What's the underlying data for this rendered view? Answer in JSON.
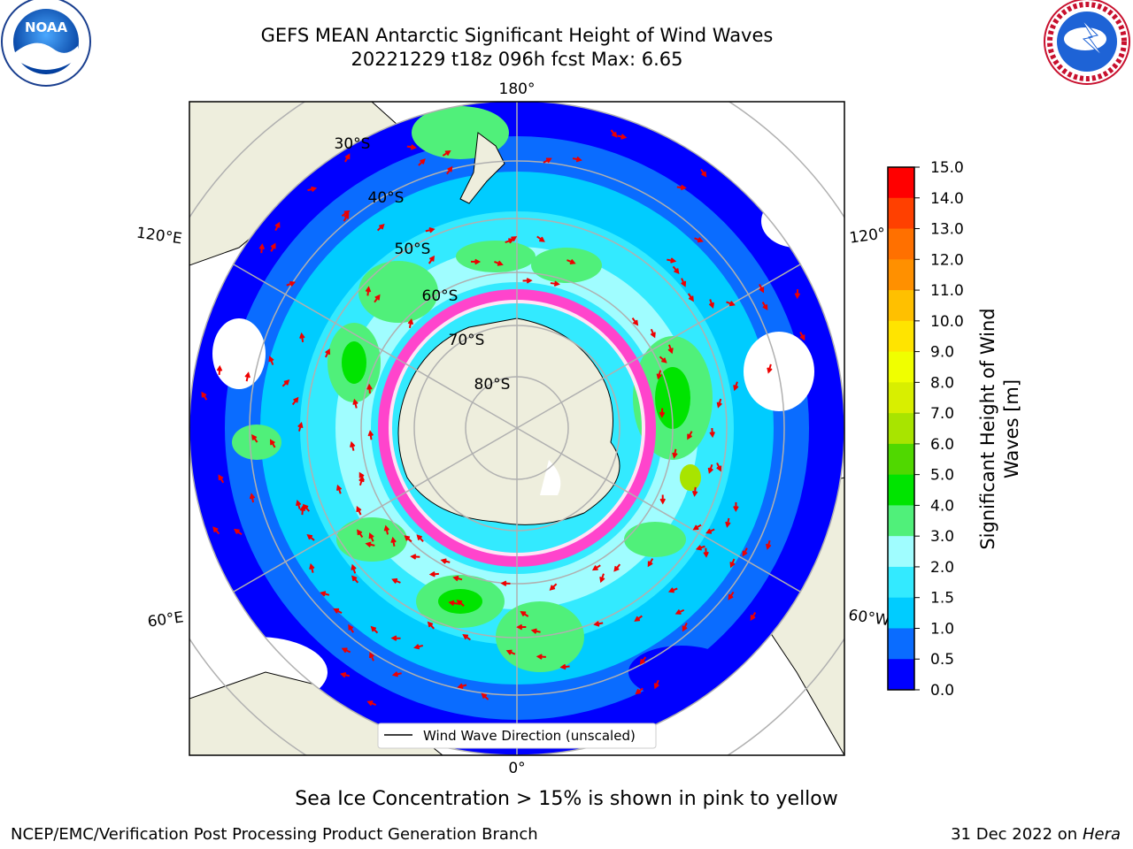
{
  "title": {
    "line1": "GEFS MEAN Antarctic Significant Height of Wind Waves",
    "line2": "20221229 t18z 096h fcst   Max: 6.65"
  },
  "logos": {
    "left": "NOAA",
    "left_ring": "NATIONAL OCEANIC AND ATMOSPHERIC ADMINISTRATION · U.S. DEPARTMENT OF COMMERCE",
    "right_ring": "NATIONAL WEATHER SERVICE"
  },
  "map": {
    "longitude_labels": {
      "top": "180°",
      "bottom": "0°",
      "upper_left": "120°E",
      "lower_left": "60°E",
      "upper_right": "120°",
      "lower_right": "60°W"
    },
    "latitude_labels": [
      "30°S",
      "40°S",
      "50°S",
      "60°S",
      "70°S",
      "80°S"
    ],
    "legend_label": "Wind Wave Direction (unscaled)"
  },
  "colorbar": {
    "label": "Significant Height of Wind Waves [m]",
    "ticks": [
      "0.0",
      "0.5",
      "1.0",
      "1.5",
      "2.0",
      "3.0",
      "4.0",
      "5.0",
      "6.0",
      "7.0",
      "8.0",
      "9.0",
      "10.0",
      "11.0",
      "12.0",
      "13.0",
      "14.0",
      "15.0"
    ],
    "colors": [
      "#0000ff",
      "#0a6cff",
      "#00ccff",
      "#33eaff",
      "#a0fdff",
      "#50f07a",
      "#00e400",
      "#50d800",
      "#a8e400",
      "#d8ef00",
      "#f0ff00",
      "#ffe400",
      "#ffc000",
      "#ff9000",
      "#ff7000",
      "#ff4000",
      "#ff0000"
    ]
  },
  "colors": {
    "land": "#eeeedd",
    "ice_pink": "#ff44cc",
    "arrow": "#ee0000",
    "grid": "#b0b0b0"
  },
  "sea_ice_note": "Sea Ice Concentration > 15% is shown in pink to yellow",
  "footer": {
    "left": "NCEP/EMC/Verification Post Processing Product Generation Branch",
    "right_date": "31 Dec 2022 on",
    "right_machine": "Hera"
  }
}
